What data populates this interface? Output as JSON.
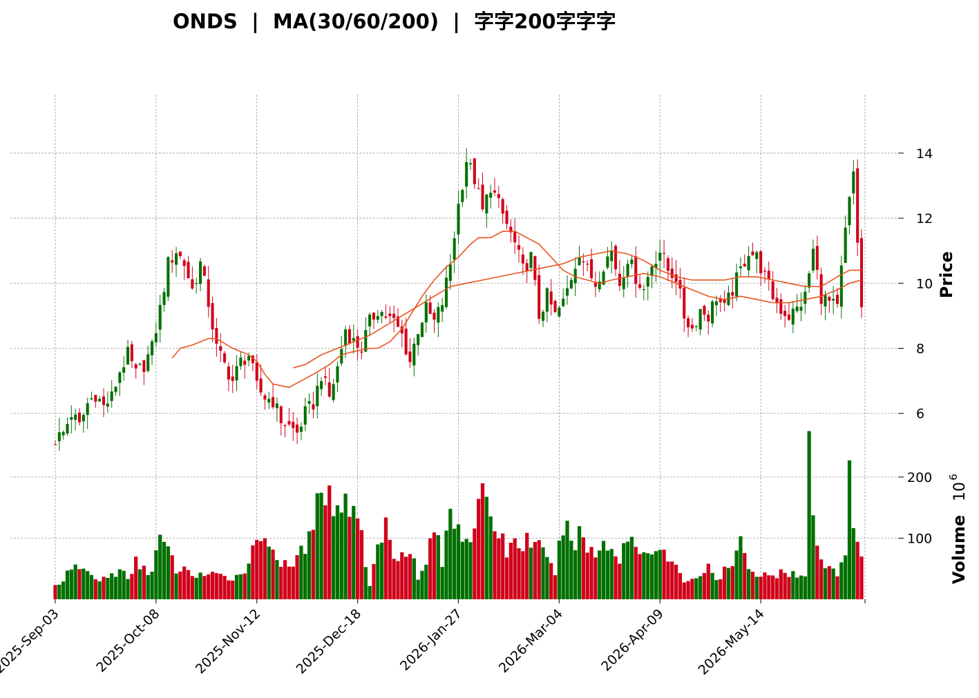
{
  "chart_data": {
    "type": "candlestick",
    "title": "ONDS  |  MA(30/60/200)  |  字字200字字字",
    "ylabel": "Price",
    "volume_label": "Volume",
    "volume_exponent_label": "10",
    "volume_exponent": "6",
    "price_ylim": [
      4.7,
      15.8
    ],
    "price_ticks": [
      6,
      8,
      10,
      12,
      14
    ],
    "volume_ylim": [
      0,
      235
    ],
    "volume_ticks": [
      100,
      200
    ],
    "x_tick_labels": [
      "2025-Sep-03",
      "2025-Oct-08",
      "2025-Nov-12",
      "2025-Dec-18",
      "2026-Jan-27",
      "2026-Mar-04",
      "2026-Apr-09",
      "2026-May-14"
    ],
    "x_tick_indices": [
      0,
      25,
      50,
      75,
      100,
      125,
      150,
      175
    ],
    "num_bars": 201,
    "colors": {
      "up": "#007000",
      "down": "#d0021b",
      "ma": "#e8531d",
      "grid": "#9a9a9a"
    },
    "close_anchors": [
      [
        0,
        5.2
      ],
      [
        2,
        5.4
      ],
      [
        4,
        6.0
      ],
      [
        6,
        5.6
      ],
      [
        8,
        6.3
      ],
      [
        10,
        6.6
      ],
      [
        12,
        6.2
      ],
      [
        14,
        6.5
      ],
      [
        16,
        7.3
      ],
      [
        18,
        7.8
      ],
      [
        20,
        7.2
      ],
      [
        22,
        7.5
      ],
      [
        24,
        8.0
      ],
      [
        26,
        9.2
      ],
      [
        28,
        10.6
      ],
      [
        30,
        11.0
      ],
      [
        32,
        10.6
      ],
      [
        34,
        9.8
      ],
      [
        36,
        10.6
      ],
      [
        38,
        9.4
      ],
      [
        40,
        8.0
      ],
      [
        42,
        7.5
      ],
      [
        44,
        7.0
      ],
      [
        46,
        7.6
      ],
      [
        48,
        7.8
      ],
      [
        50,
        6.8
      ],
      [
        52,
        6.5
      ],
      [
        54,
        6.4
      ],
      [
        56,
        5.8
      ],
      [
        58,
        5.6
      ],
      [
        60,
        5.4
      ],
      [
        62,
        6.0
      ],
      [
        64,
        6.3
      ],
      [
        66,
        7.2
      ],
      [
        68,
        6.5
      ],
      [
        70,
        7.4
      ],
      [
        72,
        8.6
      ],
      [
        74,
        8.2
      ],
      [
        76,
        8.0
      ],
      [
        78,
        8.8
      ],
      [
        80,
        9.2
      ],
      [
        82,
        9.0
      ],
      [
        84,
        8.8
      ],
      [
        86,
        8.4
      ],
      [
        88,
        7.6
      ],
      [
        90,
        8.6
      ],
      [
        92,
        9.2
      ],
      [
        94,
        8.8
      ],
      [
        96,
        9.4
      ],
      [
        98,
        10.6
      ],
      [
        100,
        12.4
      ],
      [
        102,
        13.8
      ],
      [
        104,
        13.2
      ],
      [
        106,
        12.2
      ],
      [
        108,
        13.0
      ],
      [
        110,
        12.4
      ],
      [
        112,
        11.8
      ],
      [
        114,
        11.2
      ],
      [
        116,
        10.4
      ],
      [
        118,
        10.8
      ],
      [
        120,
        9.0
      ],
      [
        122,
        9.6
      ],
      [
        124,
        9.0
      ],
      [
        126,
        9.4
      ],
      [
        128,
        10.2
      ],
      [
        130,
        11.0
      ],
      [
        132,
        10.4
      ],
      [
        134,
        10.0
      ],
      [
        136,
        10.6
      ],
      [
        138,
        11.0
      ],
      [
        140,
        10.0
      ],
      [
        142,
        10.8
      ],
      [
        144,
        10.2
      ],
      [
        146,
        9.8
      ],
      [
        148,
        10.6
      ],
      [
        150,
        11.0
      ],
      [
        152,
        10.4
      ],
      [
        154,
        10.2
      ],
      [
        156,
        9.0
      ],
      [
        158,
        8.6
      ],
      [
        160,
        9.2
      ],
      [
        162,
        9.0
      ],
      [
        164,
        9.6
      ],
      [
        166,
        9.2
      ],
      [
        168,
        9.8
      ],
      [
        170,
        10.4
      ],
      [
        172,
        11.0
      ],
      [
        174,
        10.8
      ],
      [
        176,
        10.2
      ],
      [
        178,
        9.6
      ],
      [
        180,
        9.2
      ],
      [
        182,
        9.0
      ],
      [
        184,
        9.2
      ],
      [
        186,
        9.6
      ],
      [
        188,
        11.0
      ],
      [
        190,
        9.6
      ],
      [
        192,
        9.4
      ],
      [
        194,
        9.2
      ],
      [
        196,
        11.6
      ],
      [
        198,
        13.4
      ],
      [
        200,
        9.2
      ]
    ],
    "volume_anchors": [
      [
        0,
        22
      ],
      [
        4,
        45
      ],
      [
        6,
        55
      ],
      [
        10,
        32
      ],
      [
        14,
        38
      ],
      [
        16,
        50
      ],
      [
        18,
        30
      ],
      [
        20,
        60
      ],
      [
        24,
        45
      ],
      [
        26,
        100
      ],
      [
        30,
        50
      ],
      [
        34,
        42
      ],
      [
        38,
        40
      ],
      [
        42,
        35
      ],
      [
        46,
        40
      ],
      [
        52,
        115
      ],
      [
        54,
        80
      ],
      [
        58,
        45
      ],
      [
        60,
        70
      ],
      [
        62,
        88
      ],
      [
        64,
        100
      ],
      [
        66,
        210
      ],
      [
        68,
        160
      ],
      [
        70,
        170
      ],
      [
        72,
        150
      ],
      [
        74,
        170
      ],
      [
        76,
        100
      ],
      [
        78,
        20
      ],
      [
        80,
        90
      ],
      [
        82,
        120
      ],
      [
        84,
        80
      ],
      [
        86,
        75
      ],
      [
        88,
        90
      ],
      [
        90,
        30
      ],
      [
        92,
        60
      ],
      [
        94,
        125
      ],
      [
        96,
        55
      ],
      [
        98,
        150
      ],
      [
        100,
        125
      ],
      [
        102,
        100
      ],
      [
        104,
        125
      ],
      [
        106,
        160
      ],
      [
        108,
        140
      ],
      [
        110,
        110
      ],
      [
        112,
        80
      ],
      [
        114,
        95
      ],
      [
        116,
        90
      ],
      [
        118,
        100
      ],
      [
        120,
        85
      ],
      [
        122,
        60
      ],
      [
        124,
        45
      ],
      [
        126,
        120
      ],
      [
        128,
        95
      ],
      [
        130,
        105
      ],
      [
        134,
        70
      ],
      [
        136,
        95
      ],
      [
        138,
        90
      ],
      [
        140,
        60
      ],
      [
        142,
        110
      ],
      [
        144,
        85
      ],
      [
        146,
        75
      ],
      [
        148,
        90
      ],
      [
        150,
        80
      ],
      [
        152,
        65
      ],
      [
        154,
        50
      ],
      [
        156,
        30
      ],
      [
        158,
        35
      ],
      [
        160,
        40
      ],
      [
        162,
        50
      ],
      [
        164,
        30
      ],
      [
        166,
        45
      ],
      [
        168,
        55
      ],
      [
        170,
        90
      ],
      [
        172,
        60
      ],
      [
        174,
        40
      ],
      [
        176,
        40
      ],
      [
        178,
        35
      ],
      [
        180,
        50
      ],
      [
        182,
        45
      ],
      [
        184,
        40
      ],
      [
        186,
        35
      ],
      [
        187,
        235
      ],
      [
        188,
        135
      ],
      [
        190,
        55
      ],
      [
        192,
        50
      ],
      [
        194,
        40
      ],
      [
        196,
        85
      ],
      [
        197,
        235
      ],
      [
        198,
        135
      ],
      [
        200,
        60
      ]
    ],
    "ma_series": [
      {
        "window": 30,
        "points": [
          [
            29,
            7.7
          ],
          [
            31,
            8.0
          ],
          [
            34,
            8.1
          ],
          [
            38,
            8.3
          ],
          [
            40,
            8.3
          ],
          [
            44,
            8.0
          ],
          [
            48,
            7.8
          ],
          [
            50,
            7.6
          ],
          [
            52,
            7.2
          ],
          [
            54,
            6.9
          ],
          [
            58,
            6.8
          ],
          [
            61,
            7.0
          ],
          [
            64,
            7.2
          ],
          [
            68,
            7.5
          ],
          [
            71,
            7.8
          ],
          [
            74,
            7.9
          ],
          [
            78,
            8.0
          ],
          [
            80,
            8.0
          ],
          [
            83,
            8.2
          ],
          [
            86,
            8.6
          ],
          [
            88,
            9.0
          ],
          [
            91,
            9.6
          ],
          [
            94,
            10.1
          ],
          [
            97,
            10.5
          ],
          [
            100,
            10.8
          ],
          [
            103,
            11.2
          ],
          [
            105,
            11.4
          ],
          [
            108,
            11.4
          ],
          [
            111,
            11.6
          ],
          [
            114,
            11.6
          ],
          [
            117,
            11.4
          ],
          [
            120,
            11.2
          ],
          [
            123,
            10.8
          ],
          [
            126,
            10.4
          ],
          [
            129,
            10.2
          ],
          [
            132,
            10.1
          ],
          [
            135,
            10.0
          ],
          [
            138,
            10.1
          ],
          [
            142,
            10.2
          ],
          [
            146,
            10.3
          ],
          [
            150,
            10.2
          ],
          [
            154,
            10.0
          ],
          [
            158,
            9.8
          ],
          [
            162,
            9.6
          ],
          [
            166,
            9.5
          ],
          [
            170,
            9.6
          ],
          [
            174,
            9.5
          ],
          [
            178,
            9.4
          ],
          [
            182,
            9.4
          ],
          [
            186,
            9.5
          ],
          [
            190,
            9.6
          ],
          [
            194,
            9.8
          ],
          [
            197,
            10.0
          ],
          [
            200,
            10.1
          ]
        ]
      },
      {
        "window": 60,
        "points": [
          [
            59,
            7.4
          ],
          [
            62,
            7.5
          ],
          [
            66,
            7.8
          ],
          [
            70,
            8.0
          ],
          [
            74,
            8.2
          ],
          [
            78,
            8.4
          ],
          [
            82,
            8.7
          ],
          [
            86,
            9.0
          ],
          [
            90,
            9.3
          ],
          [
            94,
            9.6
          ],
          [
            98,
            9.9
          ],
          [
            102,
            10.0
          ],
          [
            106,
            10.1
          ],
          [
            110,
            10.2
          ],
          [
            114,
            10.3
          ],
          [
            118,
            10.4
          ],
          [
            122,
            10.5
          ],
          [
            126,
            10.6
          ],
          [
            130,
            10.8
          ],
          [
            134,
            10.9
          ],
          [
            138,
            11.0
          ],
          [
            142,
            10.9
          ],
          [
            146,
            10.7
          ],
          [
            150,
            10.4
          ],
          [
            154,
            10.2
          ],
          [
            158,
            10.1
          ],
          [
            162,
            10.1
          ],
          [
            166,
            10.1
          ],
          [
            170,
            10.2
          ],
          [
            174,
            10.2
          ],
          [
            178,
            10.1
          ],
          [
            182,
            10.0
          ],
          [
            186,
            9.9
          ],
          [
            190,
            9.9
          ],
          [
            194,
            10.2
          ],
          [
            197,
            10.4
          ],
          [
            200,
            10.4
          ]
        ]
      }
    ]
  }
}
